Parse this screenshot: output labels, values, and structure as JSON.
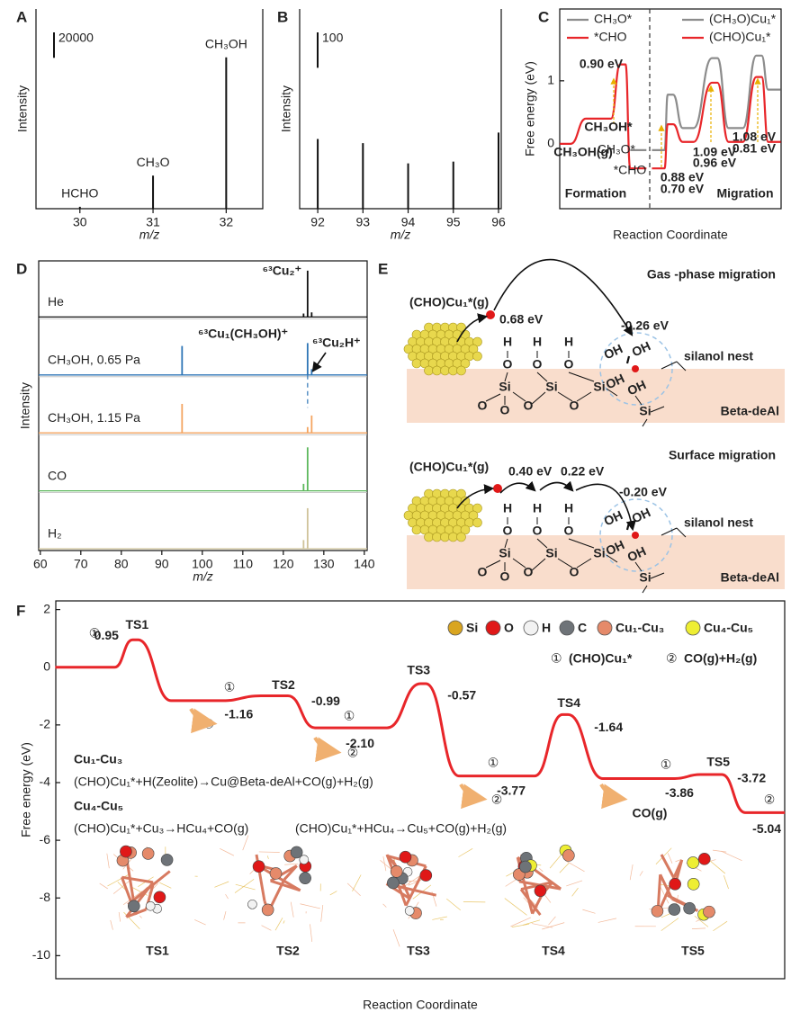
{
  "chart_data": [
    {
      "panel": "A",
      "type": "stick",
      "ylabel": "Intensity",
      "xlabel": "m/z",
      "color": "#111111",
      "x": [
        30,
        31,
        32
      ],
      "values": [
        1500,
        26000,
        119000
      ],
      "labels": [
        "HCHO",
        "CH₃O",
        "CH₃OH"
      ],
      "xlim": [
        29.4,
        32.5
      ],
      "xticks": [
        30,
        31,
        32
      ],
      "ylim": [
        0,
        157000
      ],
      "scale_bar": 20000
    },
    {
      "panel": "B",
      "type": "stick",
      "ylabel": "Intensity",
      "xlabel": "m/z",
      "color": "#111111",
      "x": [
        92,
        93,
        94,
        95,
        96
      ],
      "values": [
        197,
        185,
        128,
        133,
        215
      ],
      "xlim": [
        91.6,
        96.06
      ],
      "xticks": [
        92,
        93,
        94,
        95,
        96
      ],
      "ylim": [
        0,
        564
      ],
      "scale_bar": 100
    },
    {
      "panel": "C",
      "type": "energy_profile",
      "ylabel": "Free energy (eV)",
      "xlabel": "Reaction Coordinate",
      "ylim": [
        -1.03,
        2.14
      ],
      "yticks": [
        0,
        1
      ],
      "xlim": [
        0,
        10
      ],
      "x": [
        0.25,
        1.75,
        2.85,
        3.55,
        4.45,
        5.0,
        5.8,
        7.0,
        7.95,
        9.0,
        9.7
      ],
      "series": [
        {
          "name": "CH₃O*",
          "color": "#8c8c8c",
          "values": [
            null,
            null,
            null,
            -0.1,
            null,
            null,
            null,
            null,
            null,
            null,
            null
          ]
        },
        {
          "name": "*CHO",
          "color": "#e8262a",
          "values": [
            0,
            0.4,
            1.26,
            -0.39,
            null,
            null,
            null,
            null,
            null,
            null,
            null
          ]
        },
        {
          "name": "(CH₃O)Cu₁*",
          "color": "#8c8c8c",
          "values": [
            null,
            null,
            null,
            null,
            -0.1,
            0.78,
            0.25,
            1.36,
            0.25,
            1.4,
            0.86
          ]
        },
        {
          "name": "(CHO)Cu₁*",
          "color": "#e8262a",
          "values": [
            null,
            null,
            null,
            null,
            -0.39,
            0.31,
            0.03,
            0.97,
            0.03,
            1.06,
            0.03
          ]
        }
      ],
      "annotations": [
        {
          "text": "0.90 eV",
          "color": "#e8262a"
        },
        {
          "text": "CH₃OH*",
          "color": "#e8262a"
        },
        {
          "text": "CH₃OH(g)",
          "color": "#e8262a"
        },
        {
          "text": "CH₃O*",
          "color": "#8c8c8c"
        },
        {
          "text": "*CHO",
          "color": "#e8262a"
        },
        {
          "text": "0.88 eV",
          "color": "#8c8c8c"
        },
        {
          "text": "0.70 eV",
          "color": "#e8262a"
        },
        {
          "text": "1.09 eV",
          "color": "#8c8c8c"
        },
        {
          "text": "0.96 eV",
          "color": "#e8262a"
        },
        {
          "text": "1.08 eV",
          "color": "#8c8c8c"
        },
        {
          "text": "0.81 eV",
          "color": "#e8262a"
        }
      ],
      "regions": [
        "Formation",
        "Migration"
      ]
    },
    {
      "panel": "D",
      "type": "spectrum",
      "ylabel": "Intensity",
      "xlabel": "m/z",
      "xlim": [
        59.6,
        140.7
      ],
      "xticks": [
        60,
        70,
        80,
        90,
        100,
        110,
        120,
        130,
        140
      ],
      "series": [
        {
          "name": "He",
          "color": "#111111",
          "x": [
            125,
            126,
            127
          ],
          "values": [
            0.06,
            0.8,
            0.08
          ]
        },
        {
          "name": "CH₃OH, 0.65 Pa",
          "color": "#2e75b6",
          "x": [
            95,
            126,
            127
          ],
          "values": [
            0.5,
            0.55,
            0.1
          ]
        },
        {
          "name": "CH₃OH, 1.15 Pa",
          "color": "#f4a460",
          "x": [
            95,
            126,
            127
          ],
          "values": [
            0.5,
            0.1,
            0.3
          ]
        },
        {
          "name": "CO",
          "color": "#5cb85c",
          "x": [
            125,
            126
          ],
          "values": [
            0.12,
            0.75
          ]
        },
        {
          "name": "H₂",
          "color": "#cfc39a",
          "x": [
            125,
            126
          ],
          "values": [
            0.15,
            0.7
          ]
        }
      ],
      "annotations": [
        {
          "text": "⁶³Cu₂⁺",
          "color": "#111111"
        },
        {
          "text": "⁶³Cu₁(CH₃OH)⁺",
          "color": "#e8262a"
        },
        {
          "text": "⁶³Cu₂H⁺",
          "color": "#f4a460"
        }
      ]
    },
    {
      "panel": "F",
      "type": "energy_profile",
      "ylabel": "Free energy (eV)",
      "xlabel": "Reaction Coordinate",
      "ylim": [
        -10.8,
        2.3
      ],
      "yticks": [
        2,
        0,
        -2,
        -4,
        -6,
        -8,
        -10
      ],
      "xlim": [
        0,
        10
      ],
      "x": [
        0.4,
        1.09,
        1.93,
        3.0,
        4.05,
        5.04,
        6.05,
        6.99,
        8.0,
        8.99,
        9.73
      ],
      "categories": [
        null,
        "TS1",
        null,
        "TS2",
        null,
        "TS3",
        null,
        "TS4",
        null,
        "TS5",
        null
      ],
      "series": [
        {
          "color": "#e8262a",
          "values": [
            0,
            0.95,
            -1.16,
            -0.99,
            -2.1,
            -0.57,
            -3.77,
            -1.64,
            -3.86,
            -3.72,
            -5.04
          ],
          "value_labels": [
            null,
            "0.95",
            "-1.16",
            "-0.99",
            "-2.10",
            "-0.57",
            "-3.77",
            "-1.64",
            "-3.86",
            "-3.72",
            "-5.04"
          ]
        }
      ],
      "legend": [
        {
          "name": "Si",
          "color": "#d9a520"
        },
        {
          "name": "O",
          "color": "#e01818"
        },
        {
          "name": "H",
          "color": "#f2f2f2"
        },
        {
          "name": "C",
          "color": "#6e7378"
        },
        {
          "name": "Cu₁-Cu₃",
          "color": "#e58a6a"
        },
        {
          "name": "Cu₄-Cu₅",
          "color": "#eeee33"
        }
      ],
      "markers": [
        "①",
        "②"
      ],
      "species": [
        "(CHO)Cu₁*",
        "CO(g)+H₂(g)"
      ],
      "reactions": [
        {
          "name": "Cu₁-Cu₃",
          "equations": [
            "(CHO)Cu₁*+H(Zeolite)→Cu@Beta-deAl+CO(g)+H₂(g)"
          ]
        },
        {
          "name": "Cu₄-Cu₅",
          "equations": [
            "(CHO)Cu₁*+Cu₃→HCu₄+CO(g)",
            "(CHO)Cu₁*+HCu₄→Cu₅+CO(g)+H₂(g)"
          ]
        }
      ],
      "annotation": "CO(g)",
      "structure_labels": [
        "TS1",
        "TS2",
        "TS3",
        "TS4",
        "TS5"
      ]
    }
  ],
  "diagram": {
    "panel": "E",
    "sections": [
      {
        "title": "Gas -phase migration",
        "adsorbate": "(CHO)Cu₁*(g)",
        "energies": [
          "0.68 eV",
          "-0.26 eV"
        ]
      },
      {
        "title": "Surface migration",
        "adsorbate": "(CHO)Cu₁*(g)",
        "energies": [
          "0.40 eV",
          "0.22 eV",
          "-0.20 eV"
        ]
      }
    ],
    "nest": "silanol nest",
    "support": "Beta-deAl",
    "atoms": [
      "H",
      "O",
      "Si",
      "OH"
    ]
  }
}
